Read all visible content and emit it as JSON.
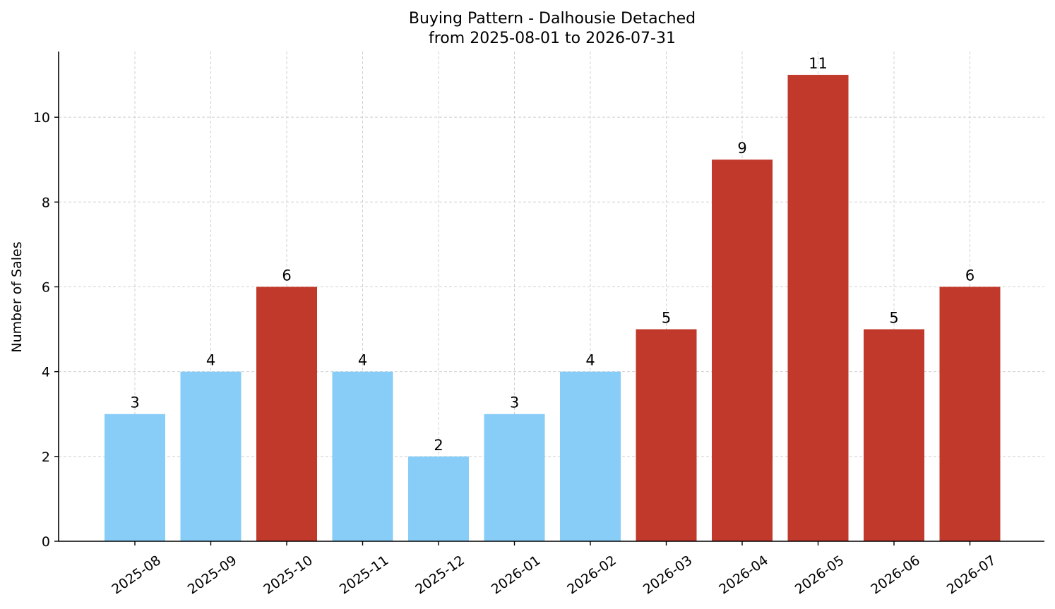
{
  "chart_data": {
    "type": "bar",
    "title": "Buying Pattern - Dalhousie Detached",
    "subtitle": "from 2025-08-01 to 2026-07-31",
    "xlabel": "",
    "ylabel": "Number of Sales",
    "categories": [
      "2025-08",
      "2025-09",
      "2025-10",
      "2025-11",
      "2025-12",
      "2026-01",
      "2026-02",
      "2026-03",
      "2026-04",
      "2026-05",
      "2026-06",
      "2026-07"
    ],
    "values": [
      3,
      4,
      6,
      4,
      2,
      3,
      4,
      5,
      9,
      11,
      5,
      6
    ],
    "bar_colors": [
      "#87cdf7",
      "#87cdf7",
      "#c0392b",
      "#87cdf7",
      "#87cdf7",
      "#87cdf7",
      "#87cdf7",
      "#c0392b",
      "#c0392b",
      "#c0392b",
      "#c0392b",
      "#c0392b"
    ],
    "ylim": [
      0,
      11.55
    ],
    "yticks": [
      0,
      2,
      4,
      6,
      8,
      10
    ],
    "grid": true,
    "legend": "none"
  }
}
